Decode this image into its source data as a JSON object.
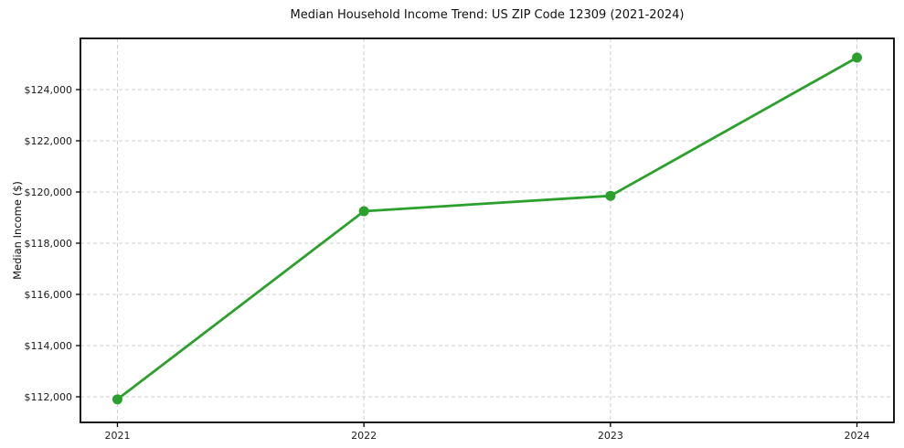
{
  "chart_data": {
    "type": "line",
    "title": "Median Household Income Trend: US ZIP Code 12309 (2021-2024)",
    "xlabel": "",
    "ylabel": "Median Income ($)",
    "x": [
      2021,
      2022,
      2023,
      2024
    ],
    "series": [
      {
        "name": "Median Household Income",
        "values": [
          111900,
          119250,
          119850,
          125250
        ],
        "color": "#2ca02c"
      }
    ],
    "xticks": [
      2021,
      2022,
      2023,
      2024
    ],
    "xtick_labels": [
      "2021",
      "2022",
      "2023",
      "2024"
    ],
    "yticks": [
      112000,
      114000,
      116000,
      118000,
      120000,
      122000,
      124000
    ],
    "ytick_labels": [
      "$112,000",
      "$114,000",
      "$116,000",
      "$118,000",
      "$120,000",
      "$122,000",
      "$124,000"
    ],
    "xlim": [
      2020.85,
      2024.15
    ],
    "ylim": [
      111000,
      126000
    ],
    "grid": true,
    "grid_color": "#cccccc",
    "grid_style": "dashed",
    "axis_color": "#000000",
    "tick_label_size": 11,
    "marker": "circle",
    "marker_size": 11,
    "line_width": 2.8,
    "legend": false
  }
}
